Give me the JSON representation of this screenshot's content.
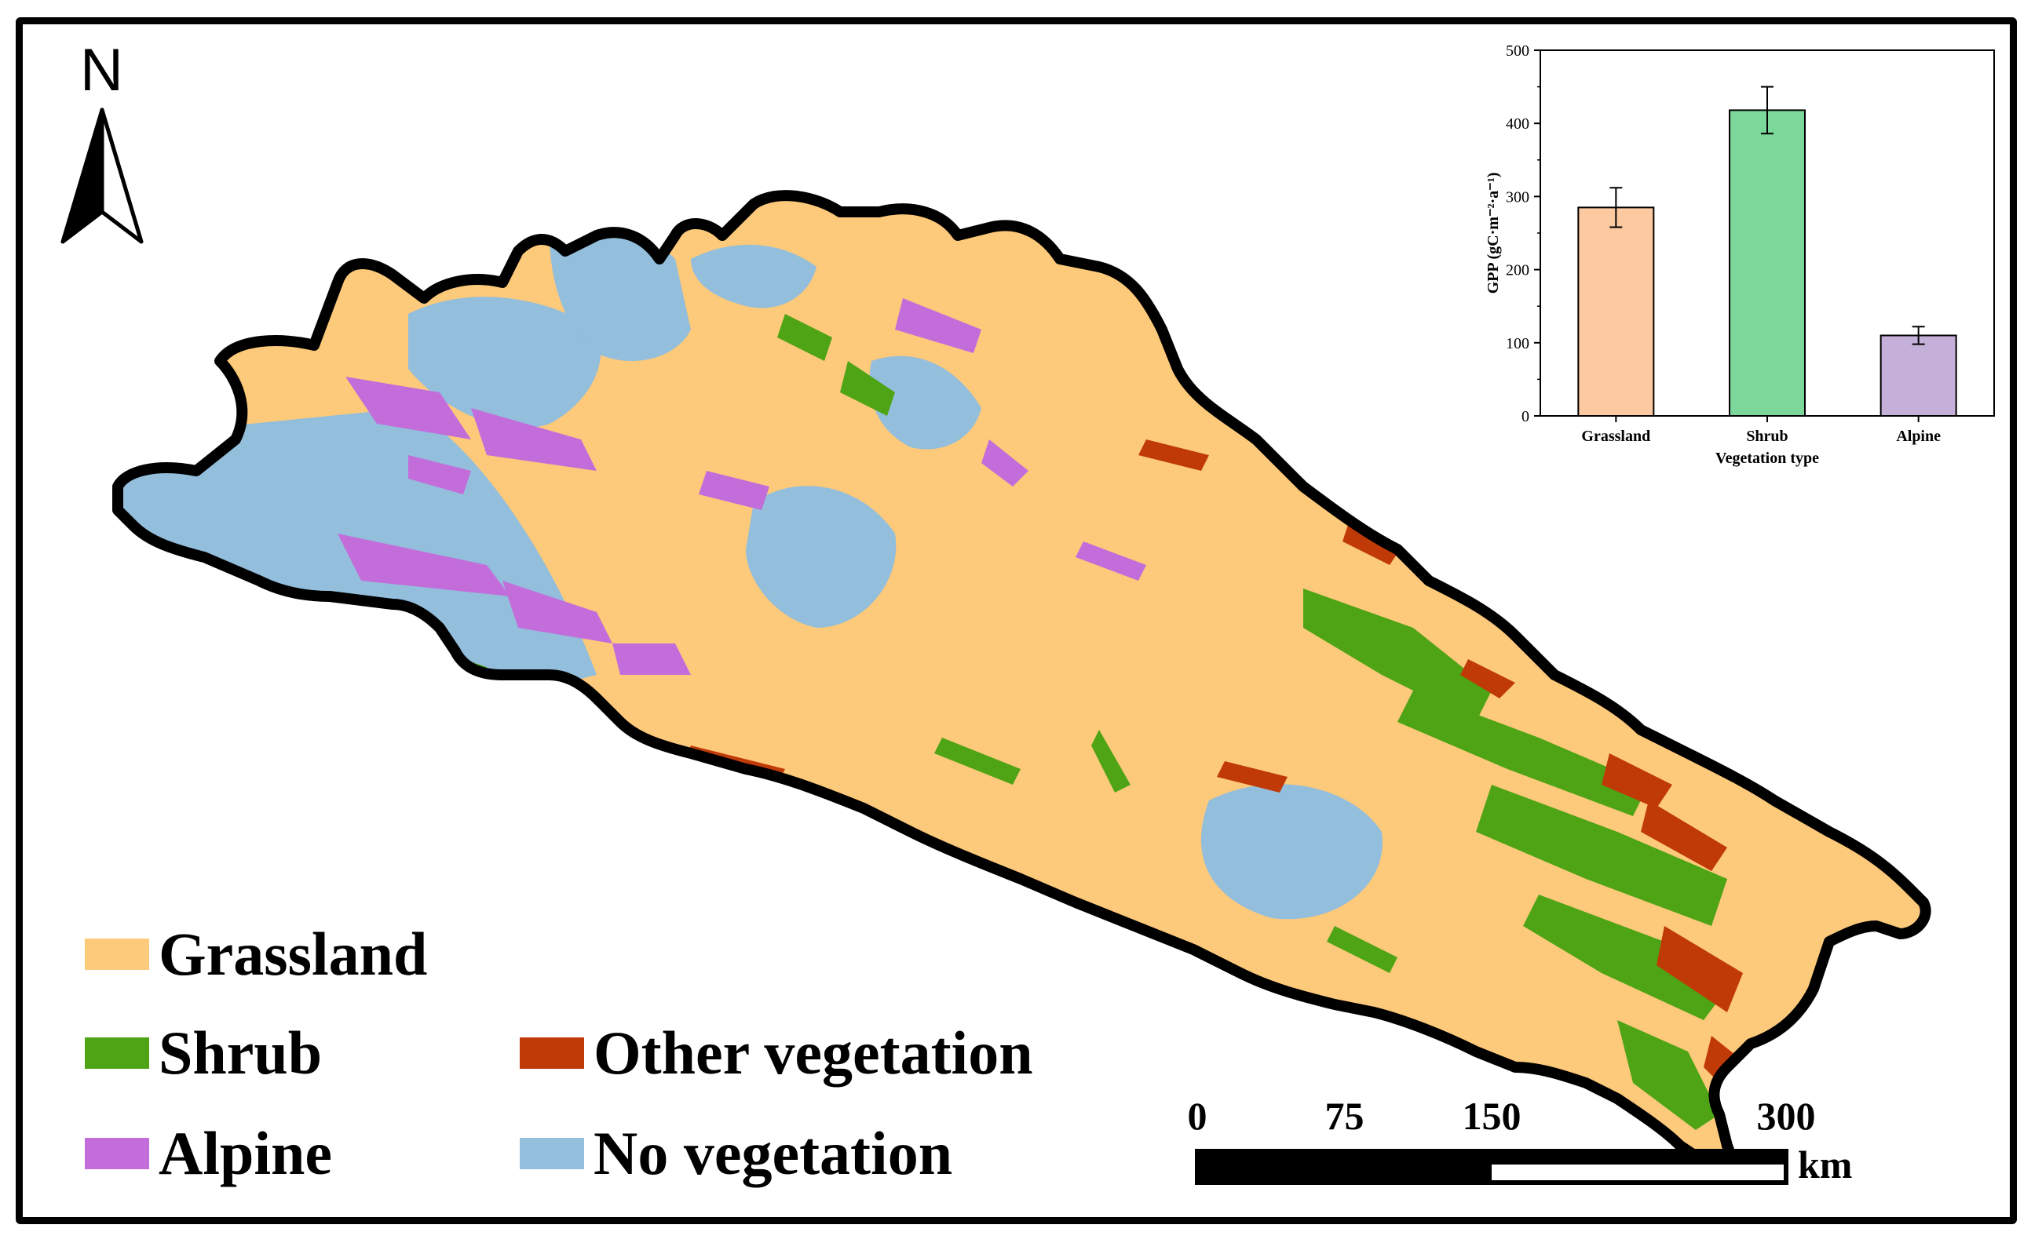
{
  "map": {
    "north_label": "N",
    "colors": {
      "grassland": "#FDC97A",
      "shrub": "#4EA415",
      "alpine": "#C36DDB",
      "other_vegetation": "#C03A08",
      "no_vegetation": "#93BEDC",
      "boundary": "#000000"
    }
  },
  "legend": {
    "items": [
      {
        "label": "Grassland",
        "color": "#FDC97A"
      },
      {
        "label": "Shrub",
        "color": "#4EA415"
      },
      {
        "label": "Other vegetation",
        "color": "#C03A08"
      },
      {
        "label": "Alpine",
        "color": "#C36DDB"
      },
      {
        "label": "No vegetation",
        "color": "#93BEDC"
      }
    ]
  },
  "scale_bar": {
    "ticks": [
      "0",
      "75",
      "150",
      "300"
    ],
    "tick_values": [
      0,
      75,
      150,
      300
    ],
    "unit": "km"
  },
  "chart_data": {
    "type": "bar",
    "title": "",
    "xlabel": "Vegetation type",
    "ylabel": "GPP (gC·m⁻²·a⁻¹)",
    "categories": [
      "Grassland",
      "Shrub",
      "Alpine"
    ],
    "values": [
      285,
      418,
      110
    ],
    "errors": [
      27,
      32,
      12
    ],
    "colors": [
      "#FCC9A0",
      "#7CD79A",
      "#C4B0D8"
    ],
    "ylim": [
      0,
      500
    ],
    "yticks": [
      "0",
      "100",
      "200",
      "300",
      "400",
      "500"
    ],
    "ytick_values": [
      0,
      100,
      200,
      300,
      400,
      500
    ],
    "grid": false,
    "legend": "none"
  }
}
